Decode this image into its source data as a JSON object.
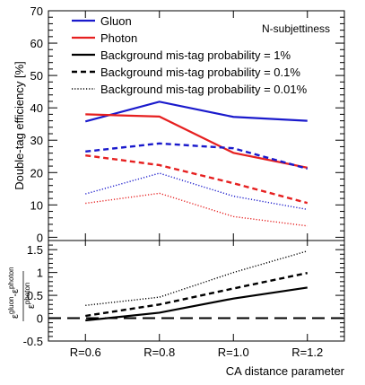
{
  "chart_data": {
    "type": "line",
    "xlabel": "CA distance parameter",
    "categories": [
      "R=0.6",
      "R=0.8",
      "R=1.0",
      "R=1.2"
    ],
    "colors": {
      "gluon": "#1a1acc",
      "photon": "#e62020",
      "black": "#000000"
    },
    "top": {
      "ylabel": "Double-tag efficiency [%]",
      "ylim": [
        -1,
        70
      ],
      "yticks": [
        0,
        10,
        20,
        30,
        40,
        50,
        60,
        70
      ],
      "annotation": "N-subjettiness",
      "legend_placement": "top",
      "legend": [
        {
          "label": "Gluon",
          "color": "#1a1acc",
          "style": "solid"
        },
        {
          "label": "Photon",
          "color": "#e62020",
          "style": "solid"
        },
        {
          "label": "Background mis-tag probability = 1%",
          "color": "#000000",
          "style": "solid"
        },
        {
          "label": "Background mis-tag probability = 0.1%",
          "color": "#000000",
          "style": "dashed"
        },
        {
          "label": "Background mis-tag probability = 0.01%",
          "color": "#000000",
          "style": "dotted"
        }
      ],
      "series": [
        {
          "particle": "gluon",
          "mistag": "1%",
          "style": "solid",
          "values": [
            35.8,
            41.9,
            37.2,
            36.0
          ]
        },
        {
          "particle": "photon",
          "mistag": "1%",
          "style": "solid",
          "values": [
            38.0,
            37.3,
            26.1,
            21.5
          ]
        },
        {
          "particle": "gluon",
          "mistag": "0.1%",
          "style": "dashed",
          "values": [
            26.5,
            29.0,
            27.5,
            21.2
          ]
        },
        {
          "particle": "photon",
          "mistag": "0.1%",
          "style": "dashed",
          "values": [
            25.3,
            22.3,
            16.7,
            10.6
          ]
        },
        {
          "particle": "gluon",
          "mistag": "0.01%",
          "style": "dotted",
          "values": [
            13.4,
            19.8,
            12.7,
            8.6
          ]
        },
        {
          "particle": "photon",
          "mistag": "0.01%",
          "style": "dotted",
          "values": [
            10.5,
            13.6,
            6.4,
            3.5
          ]
        }
      ]
    },
    "bottom": {
      "ylabel": {
        "eps": "ε",
        "gluon": "gluon",
        "minus": "-",
        "photon": "photon"
      },
      "ylim": [
        -0.5,
        1.7
      ],
      "yticks": [
        "-0.5",
        "0",
        "0.5",
        "1",
        "1.5"
      ],
      "reference_line": 0,
      "series": [
        {
          "mistag": "1%",
          "style": "solid",
          "values": [
            -0.05,
            0.12,
            0.43,
            0.67
          ]
        },
        {
          "mistag": "0.1%",
          "style": "dashed",
          "values": [
            0.05,
            0.3,
            0.65,
            0.99
          ]
        },
        {
          "mistag": "0.01%",
          "style": "dotted",
          "values": [
            0.28,
            0.46,
            1.0,
            1.47
          ]
        }
      ]
    }
  }
}
